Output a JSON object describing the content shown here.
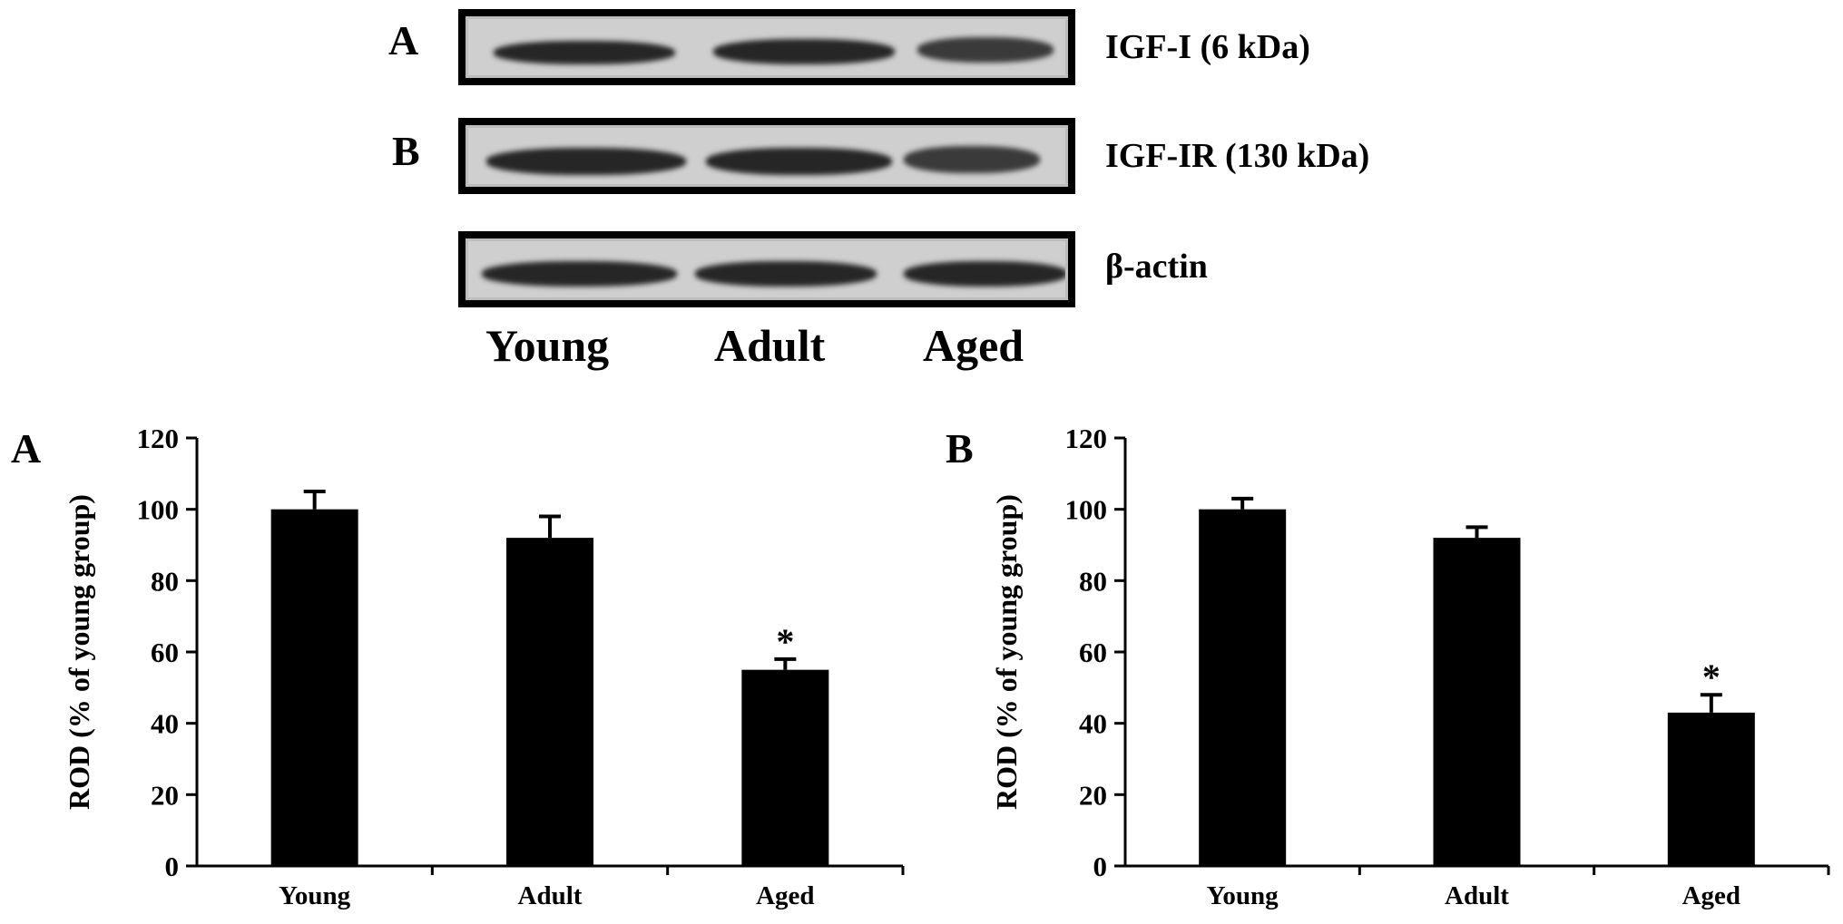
{
  "blot": {
    "rows": [
      {
        "panel": "A",
        "protein": "IGF-I (6 kDa)"
      },
      {
        "panel": "B",
        "protein": "IGF-IR (130 kDa)"
      },
      {
        "panel": "",
        "protein": "β-actin"
      }
    ],
    "lanes": [
      "Young",
      "Adult",
      "Aged"
    ]
  },
  "chart_data": [
    {
      "type": "bar",
      "panel": "A",
      "categories": [
        "Young",
        "Adult",
        "Aged"
      ],
      "values": [
        100,
        92,
        55
      ],
      "errors": [
        5,
        6,
        3
      ],
      "annotations": [
        "",
        "",
        "*"
      ],
      "title": "",
      "xlabel": "",
      "ylabel": "ROD (% of young group)",
      "ylim": [
        0,
        120
      ],
      "yticks": [
        "0",
        "20",
        "40",
        "60",
        "80",
        "100",
        "120"
      ],
      "grid": false,
      "color": "#000000"
    },
    {
      "type": "bar",
      "panel": "B",
      "categories": [
        "Young",
        "Adult",
        "Aged"
      ],
      "values": [
        100,
        92,
        43
      ],
      "errors": [
        3,
        3,
        5
      ],
      "annotations": [
        "",
        "",
        "*"
      ],
      "title": "",
      "xlabel": "",
      "ylabel": "ROD (% of young group)",
      "ylim": [
        0,
        120
      ],
      "yticks": [
        "0",
        "20",
        "40",
        "60",
        "80",
        "100",
        "120"
      ],
      "grid": false,
      "color": "#000000"
    }
  ]
}
